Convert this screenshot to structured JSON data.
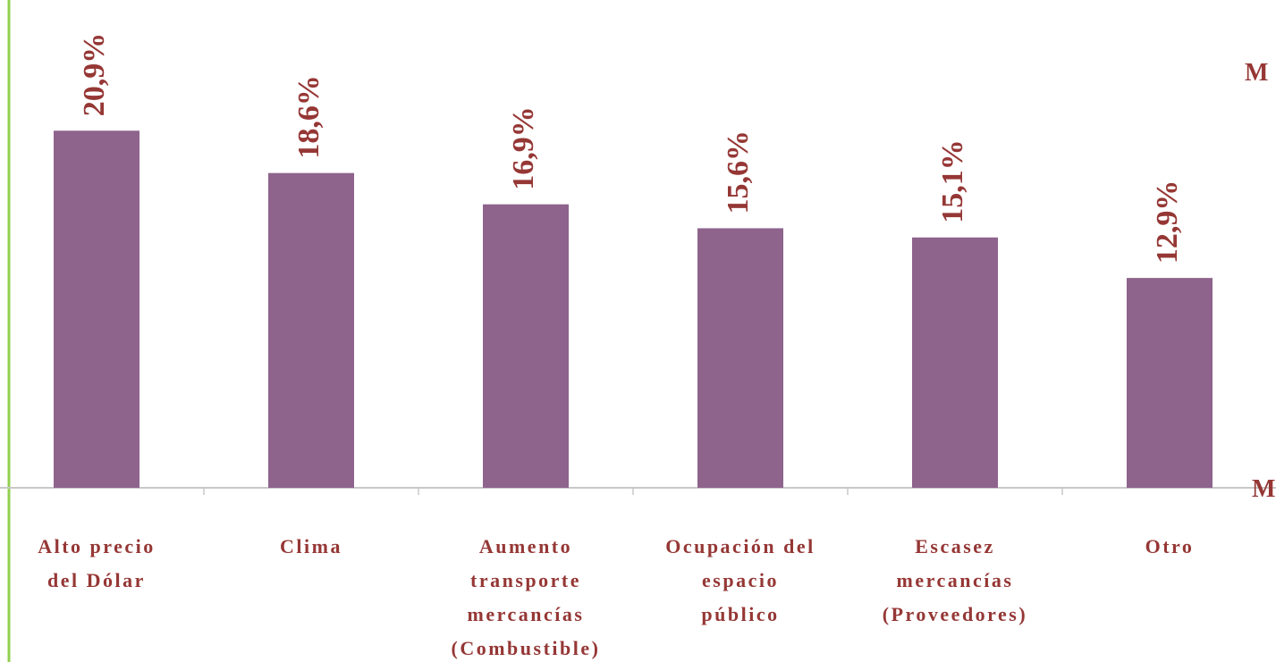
{
  "chart_data": {
    "type": "bar",
    "categories": [
      [
        "Alto precio",
        "del Dólar"
      ],
      [
        "Clima"
      ],
      [
        "Aumento",
        "transporte",
        "mercancías",
        "(Combustible)"
      ],
      [
        "Ocupación del",
        "espacio",
        "público"
      ],
      [
        "Escasez",
        "mercancías",
        "(Proveedores)"
      ],
      [
        "Otro"
      ]
    ],
    "values": [
      20.9,
      18.6,
      16.9,
      15.6,
      15.1,
      12.9
    ],
    "value_labels": [
      "20,9%",
      "18,6%",
      "16,9%",
      "15,6%",
      "15,1%",
      "12,9%"
    ],
    "color": "#8e638c",
    "ylim": [
      1.5,
      28
    ],
    "annotations": [
      "M",
      "M"
    ]
  }
}
